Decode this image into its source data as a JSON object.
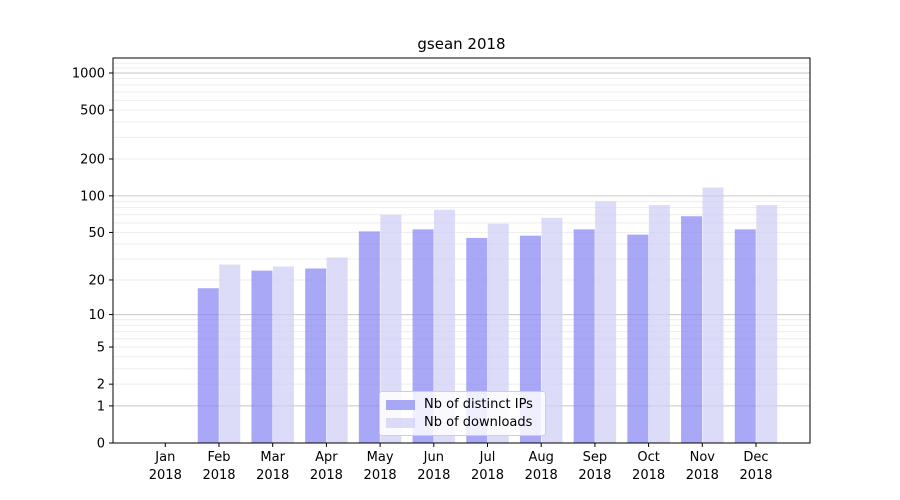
{
  "chart_data": {
    "type": "bar",
    "title": "gsean 2018",
    "categories": [
      "Jan 2018",
      "Feb 2018",
      "Mar 2018",
      "Apr 2018",
      "May 2018",
      "Jun 2018",
      "Jul 2018",
      "Aug 2018",
      "Sep 2018",
      "Oct 2018",
      "Nov 2018",
      "Dec 2018"
    ],
    "series": [
      {
        "name": "Nb of distinct IPs",
        "color": "rgba(134,134,243,0.72)",
        "values": [
          0,
          17,
          24,
          25,
          51,
          53,
          45,
          47,
          53,
          48,
          68,
          53
        ]
      },
      {
        "name": "Nb of downloads",
        "color": "rgba(206,206,247,0.72)",
        "values": [
          0,
          27,
          26,
          31,
          70,
          77,
          59,
          66,
          90,
          84,
          117,
          84
        ]
      }
    ],
    "xlabel": "",
    "ylabel": "",
    "yscale": "log1p",
    "ylim": [
      0,
      1300
    ],
    "y_ticks": [
      0,
      1,
      2,
      5,
      10,
      20,
      50,
      100,
      200,
      500,
      1000
    ],
    "y_major_gridlines": [
      1,
      10,
      100,
      1000
    ],
    "grid": "both",
    "legend_position": "lower center"
  },
  "colors": {
    "major_grid": "#c6c6c6",
    "minor_grid": "#ededed",
    "spine": "#000000",
    "text": "#000000"
  }
}
